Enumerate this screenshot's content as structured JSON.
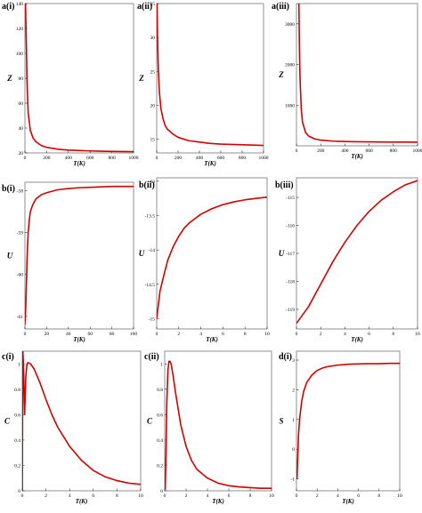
{
  "colors": {
    "curve": "#d40000",
    "frame": "#777777",
    "text": "#000000"
  },
  "chart_data": [
    {
      "id": "a-i",
      "panel_label": "a(i)",
      "type": "line",
      "ylabel": "Z",
      "xlabel": "T(K)",
      "xlim": [
        0,
        1000
      ],
      "ylim": [
        20,
        140
      ],
      "xticks": [
        0,
        200,
        400,
        600,
        800,
        1000
      ],
      "yticks": [
        20,
        40,
        60,
        80,
        100,
        120,
        140
      ],
      "series": [
        {
          "x": [
            5,
            10,
            20,
            30,
            50,
            75,
            100,
            150,
            200,
            300,
            400,
            500,
            600,
            700,
            800,
            900,
            1000
          ],
          "y": [
            140,
            120,
            75,
            52,
            38,
            32,
            29,
            26,
            24.5,
            23,
            22.3,
            21.9,
            21.6,
            21.4,
            21.2,
            21.1,
            21
          ]
        }
      ]
    },
    {
      "id": "a-ii",
      "panel_label": "a(ii)",
      "type": "line",
      "ylabel": "Z",
      "xlabel": "T(K)",
      "xlim": [
        0,
        1000
      ],
      "ylim": [
        13,
        35
      ],
      "xticks": [
        0,
        200,
        400,
        600,
        800,
        1000
      ],
      "yticks": [
        15,
        20,
        25,
        30,
        35
      ],
      "series": [
        {
          "x": [
            3,
            8,
            15,
            25,
            40,
            60,
            80,
            100,
            150,
            200,
            300,
            400,
            500,
            600,
            700,
            800,
            900,
            1000
          ],
          "y": [
            35,
            30,
            25.5,
            22,
            19.5,
            18,
            17,
            16.5,
            15.8,
            15.3,
            14.8,
            14.6,
            14.4,
            14.3,
            14.25,
            14.2,
            14.15,
            14.1
          ]
        }
      ]
    },
    {
      "id": "a-iii",
      "panel_label": "a(iii)",
      "type": "line",
      "ylabel": "Z",
      "xlabel": "T(K)",
      "xlim": [
        0,
        1000
      ],
      "ylim": [
        0,
        3500
      ],
      "xticks": [
        0,
        200,
        400,
        600,
        800,
        1000
      ],
      "yticks": [
        1000,
        2000,
        3000
      ],
      "series": [
        {
          "x": [
            20,
            25,
            30,
            40,
            50,
            75,
            100,
            150,
            200,
            300,
            400,
            500,
            600,
            700,
            800,
            900,
            1000
          ],
          "y": [
            3500,
            2300,
            1600,
            900,
            580,
            330,
            240,
            170,
            140,
            115,
            105,
            100,
            96,
            94,
            92,
            91,
            90
          ]
        }
      ]
    },
    {
      "id": "b-i",
      "panel_label": "b(i)",
      "type": "line",
      "ylabel": "U",
      "xlabel": "T(K)",
      "xlim": [
        0,
        100
      ],
      "ylim": [
        -61.3,
        -57.8
      ],
      "xticks": [
        0,
        20,
        40,
        60,
        80,
        100
      ],
      "yticks": [
        -58,
        -59,
        -60,
        -61
      ],
      "series": [
        {
          "x": [
            0,
            1,
            2,
            3,
            4,
            5,
            7,
            10,
            15,
            20,
            30,
            40,
            50,
            60,
            70,
            80,
            90,
            100
          ],
          "y": [
            -61.2,
            -60.6,
            -59.6,
            -59.0,
            -58.7,
            -58.5,
            -58.35,
            -58.2,
            -58.1,
            -58.05,
            -57.98,
            -57.95,
            -57.93,
            -57.92,
            -57.91,
            -57.9,
            -57.9,
            -57.9
          ]
        }
      ]
    },
    {
      "id": "b-ii",
      "panel_label": "b(ii)",
      "type": "line",
      "ylabel": "U",
      "xlabel": "T(K)",
      "xlim": [
        0,
        10
      ],
      "ylim": [
        -15.15,
        -12.95
      ],
      "xticks": [
        0,
        2,
        4,
        6,
        8,
        10
      ],
      "yticks": [
        -13,
        -13.5,
        -14,
        -14.5,
        -15
      ],
      "series": [
        {
          "x": [
            0,
            0.3,
            0.6,
            1,
            1.5,
            2,
            2.5,
            3,
            4,
            5,
            6,
            7,
            8,
            9,
            10
          ],
          "y": [
            -15,
            -14.6,
            -14.4,
            -14.15,
            -13.95,
            -13.8,
            -13.68,
            -13.6,
            -13.48,
            -13.4,
            -13.34,
            -13.3,
            -13.27,
            -13.25,
            -13.23
          ]
        }
      ]
    },
    {
      "id": "b-iii",
      "panel_label": "b(iii)",
      "type": "line",
      "ylabel": "U",
      "xlabel": "T(K)",
      "xlim": [
        0,
        10
      ],
      "ylim": [
        -119.7,
        -114.3
      ],
      "xticks": [
        0,
        2,
        4,
        6,
        8,
        10
      ],
      "yticks": [
        -115,
        -116,
        -117,
        -118,
        -119
      ],
      "series": [
        {
          "x": [
            0,
            1,
            2,
            3,
            4,
            5,
            6,
            7,
            8,
            9,
            10
          ],
          "y": [
            -119.5,
            -118.9,
            -118.1,
            -117.3,
            -116.6,
            -116.0,
            -115.5,
            -115.1,
            -114.8,
            -114.55,
            -114.4
          ]
        }
      ]
    },
    {
      "id": "c-i",
      "panel_label": "c(i)",
      "type": "line",
      "ylabel": "C",
      "xlabel": "T(K)",
      "xlim": [
        0,
        10
      ],
      "ylim": [
        0,
        1.1
      ],
      "xticks": [
        0,
        2,
        4,
        6,
        8,
        10
      ],
      "yticks": [
        0,
        0.2,
        0.4,
        0.6,
        0.8,
        1
      ],
      "series": [
        {
          "x": [
            0.01,
            0.02,
            0.05,
            0.1,
            0.2,
            0.3,
            0.4,
            0.5,
            0.7,
            1.0,
            1.5,
            2,
            2.5,
            3,
            4,
            5,
            6,
            7,
            8,
            9,
            10
          ],
          "y": [
            0,
            0.4,
            1.1,
            1.0,
            0.6,
            0.9,
            1.0,
            1.01,
            1.0,
            0.96,
            0.85,
            0.72,
            0.6,
            0.5,
            0.35,
            0.24,
            0.16,
            0.11,
            0.08,
            0.06,
            0.05
          ]
        }
      ]
    },
    {
      "id": "c-ii",
      "panel_label": "c(ii)",
      "type": "line",
      "ylabel": "C",
      "xlabel": "T(K)",
      "xlim": [
        0,
        10
      ],
      "ylim": [
        0,
        1.1
      ],
      "xticks": [
        0,
        2,
        4,
        6,
        8,
        10
      ],
      "yticks": [
        0,
        0.2,
        0.4,
        0.6,
        0.8,
        1
      ],
      "series": [
        {
          "x": [
            0.05,
            0.1,
            0.2,
            0.3,
            0.4,
            0.5,
            0.6,
            0.8,
            1,
            1.5,
            2,
            2.5,
            3,
            4,
            5,
            6,
            7,
            8,
            9,
            10
          ],
          "y": [
            0.01,
            0.2,
            0.7,
            0.95,
            1.02,
            1.02,
            1.0,
            0.9,
            0.78,
            0.52,
            0.35,
            0.24,
            0.17,
            0.1,
            0.06,
            0.04,
            0.03,
            0.025,
            0.02,
            0.02
          ]
        }
      ]
    },
    {
      "id": "d-i",
      "panel_label": "d(i)",
      "type": "line",
      "ylabel": "S",
      "xlabel": "T(K)",
      "xlim": [
        0,
        10
      ],
      "ylim": [
        -1.4,
        3.3
      ],
      "xticks": [
        0,
        2,
        4,
        6,
        8,
        10
      ],
      "yticks": [
        -1,
        0,
        1,
        2,
        3
      ],
      "series": [
        {
          "x": [
            0.05,
            0.1,
            0.2,
            0.3,
            0.5,
            0.7,
            1,
            1.5,
            2,
            2.5,
            3,
            4,
            5,
            6,
            7,
            8,
            9,
            10
          ],
          "y": [
            -1.0,
            -0.5,
            0.5,
            1.0,
            1.6,
            1.95,
            2.25,
            2.5,
            2.65,
            2.73,
            2.78,
            2.83,
            2.86,
            2.87,
            2.88,
            2.88,
            2.89,
            2.89
          ]
        }
      ]
    }
  ]
}
